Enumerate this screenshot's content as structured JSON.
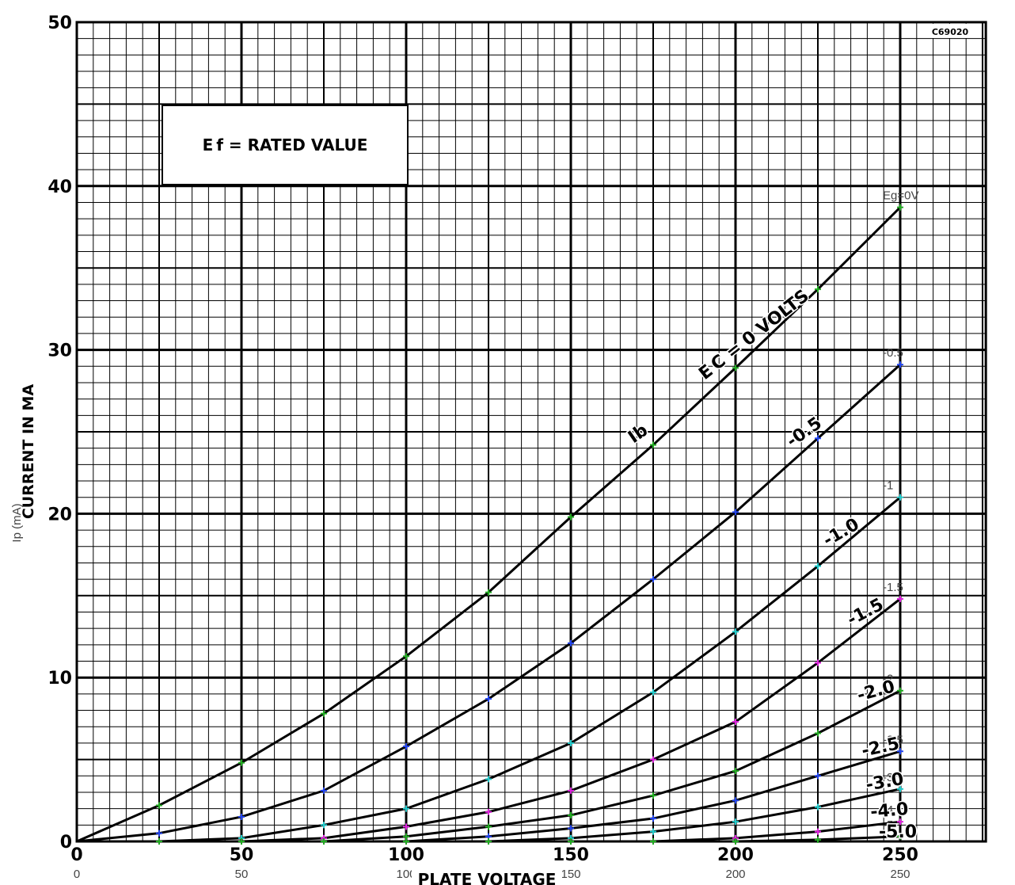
{
  "chart_data": {
    "type": "line",
    "x_label": "PLATE VOLTAGE",
    "y_label": "CURRENT IN MA",
    "y_label_overlay": "Ip (mA)",
    "box_text": "E f = RATED VALUE",
    "corner_code": "C69020",
    "x": [
      0,
      25,
      50,
      75,
      100,
      125,
      150,
      175,
      200,
      225,
      250
    ],
    "line_color": "#000000",
    "series": [
      {
        "name": "Eg=0V",
        "color": "#22aa22",
        "values": [
          0,
          2.2,
          4.8,
          7.8,
          11.3,
          15.2,
          19.8,
          24.2,
          28.9,
          33.7,
          38.7
        ]
      },
      {
        "name": "-0.5",
        "color": "#2244ee",
        "values": [
          0,
          0.5,
          1.5,
          3.1,
          5.8,
          8.7,
          12.1,
          16.0,
          20.1,
          24.6,
          29.1
        ]
      },
      {
        "name": "-1",
        "color": "#22cccc",
        "values": [
          0,
          0,
          0.2,
          1.0,
          2.0,
          3.8,
          6.0,
          9.1,
          12.8,
          16.8,
          21.0
        ]
      },
      {
        "name": "-1.5",
        "color": "#dd22dd",
        "values": [
          0,
          0,
          0,
          0.2,
          0.9,
          1.8,
          3.1,
          5.0,
          7.3,
          10.9,
          14.8
        ]
      },
      {
        "name": "-2",
        "color": "#22aa22",
        "values": [
          0,
          0,
          0,
          0,
          0.3,
          0.9,
          1.6,
          2.8,
          4.3,
          6.6,
          9.2
        ]
      },
      {
        "name": "-2.5",
        "color": "#2244ee",
        "values": [
          0,
          0,
          0,
          0,
          0,
          0.3,
          0.8,
          1.4,
          2.5,
          4.0,
          5.5
        ]
      },
      {
        "name": "-3",
        "color": "#22cccc",
        "values": [
          0,
          0,
          0,
          0,
          0,
          0,
          0.2,
          0.6,
          1.2,
          2.1,
          3.2
        ]
      },
      {
        "name": "-4",
        "color": "#dd22dd",
        "values": [
          0,
          0,
          0,
          0,
          0,
          0,
          0,
          0,
          0.2,
          0.6,
          1.2
        ]
      },
      {
        "name": "-5",
        "color": "#22aa22",
        "values": [
          0,
          0,
          0,
          0,
          0,
          0,
          0,
          0,
          0,
          0.1,
          0.3
        ]
      }
    ],
    "annotations": [
      "E C = 0 VOLTS",
      "Ib",
      "-0.5",
      "-1.0",
      "-1.5",
      "-2.0",
      "-2.5",
      "-3.0",
      "-4.0",
      "-5.0"
    ],
    "xlim": [
      0,
      276
    ],
    "ylim": [
      0,
      50
    ],
    "xticks": [
      0,
      50,
      100,
      150,
      200,
      250
    ],
    "yticks": [
      0,
      10,
      20,
      30,
      40,
      50
    ],
    "grid": true
  }
}
